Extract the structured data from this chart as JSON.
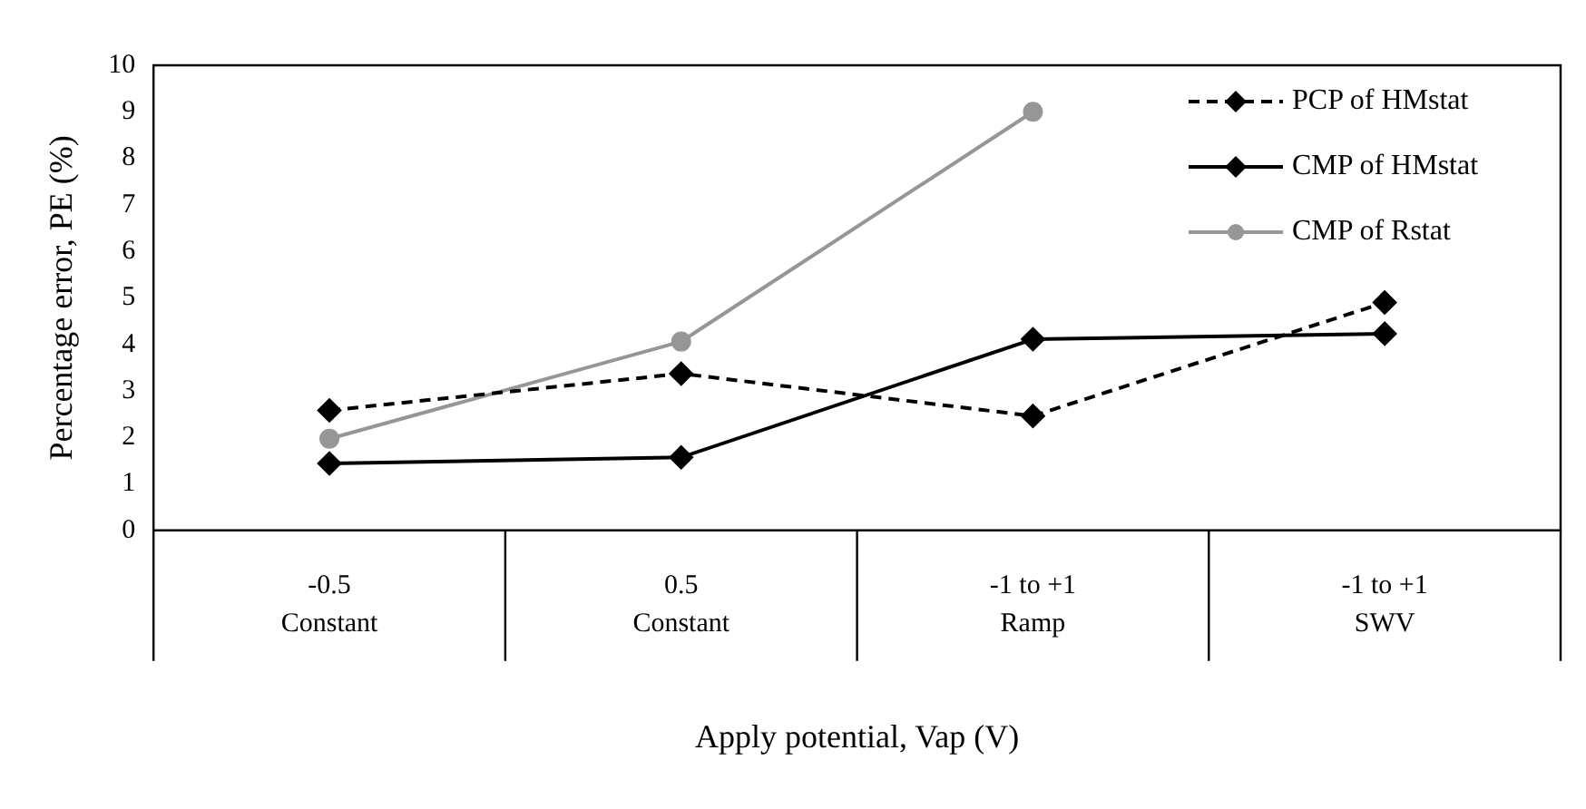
{
  "chart_data": {
    "type": "line",
    "xlabel": "Apply potential, Vap (V)",
    "ylabel": "Percentage error, PE (%)",
    "categories": [
      "-0.5\nConstant",
      "0.5\nConstant",
      "-1 to +1\nRamp",
      "-1 to +1\nSWV"
    ],
    "ylim": [
      0,
      10
    ],
    "yticks": [
      0,
      1,
      2,
      3,
      4,
      5,
      6,
      7,
      8,
      9,
      10
    ],
    "grid": false,
    "legend": "top right",
    "series": [
      {
        "name": "PCP of HMstat",
        "color": "#000000",
        "values": [
          2.58,
          3.37,
          2.46,
          4.9
        ],
        "marker": "diamond",
        "line_style": "dashed"
      },
      {
        "name": "CMP of HMstat",
        "color": "#000000",
        "values": [
          1.44,
          1.57,
          4.11,
          4.23
        ],
        "marker": "diamond",
        "line_style": "solid"
      },
      {
        "name": "CMP of Rstat",
        "color": "#969696",
        "values": [
          1.97,
          4.06,
          9.0,
          null
        ],
        "marker": "circle",
        "line_style": "solid"
      }
    ]
  }
}
